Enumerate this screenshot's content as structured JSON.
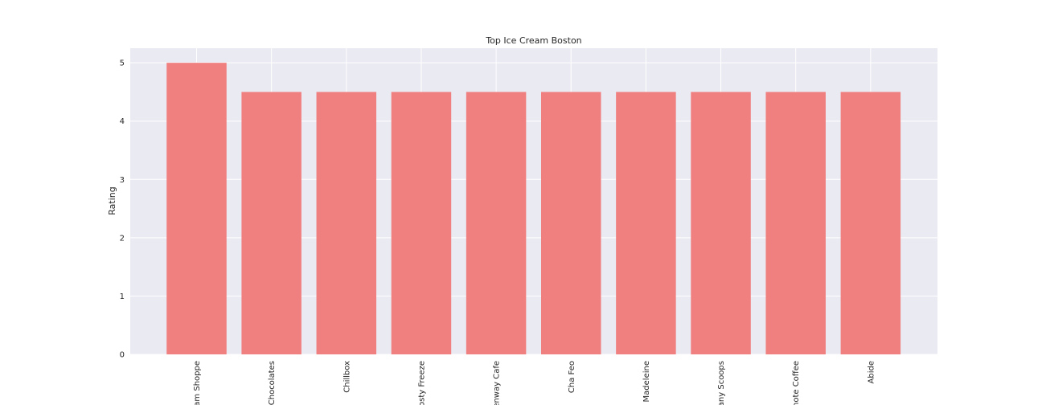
{
  "chart_data": {
    "type": "bar",
    "title": "Top Ice Cream Boston",
    "xlabel": "",
    "ylabel": "Rating",
    "categories": [
      "eam Shoppe",
      "Chocolates",
      "Chillbox",
      "rosty Freeze",
      "Fenway Cafe",
      "Cha Feo",
      "e Madeleine",
      "Many Scoops",
      "enote Coffee",
      "Abide"
    ],
    "values": [
      5,
      4.5,
      4.5,
      4.5,
      4.5,
      4.5,
      4.5,
      4.5,
      4.5,
      4.5
    ],
    "ylim": [
      0,
      5.25
    ],
    "yticks": [
      0,
      1,
      2,
      3,
      4,
      5
    ],
    "grid": true,
    "colors": {
      "bar": "#f08080",
      "plot_background": "#eaeaf2",
      "grid": "#ffffff",
      "text": "#262626"
    }
  }
}
